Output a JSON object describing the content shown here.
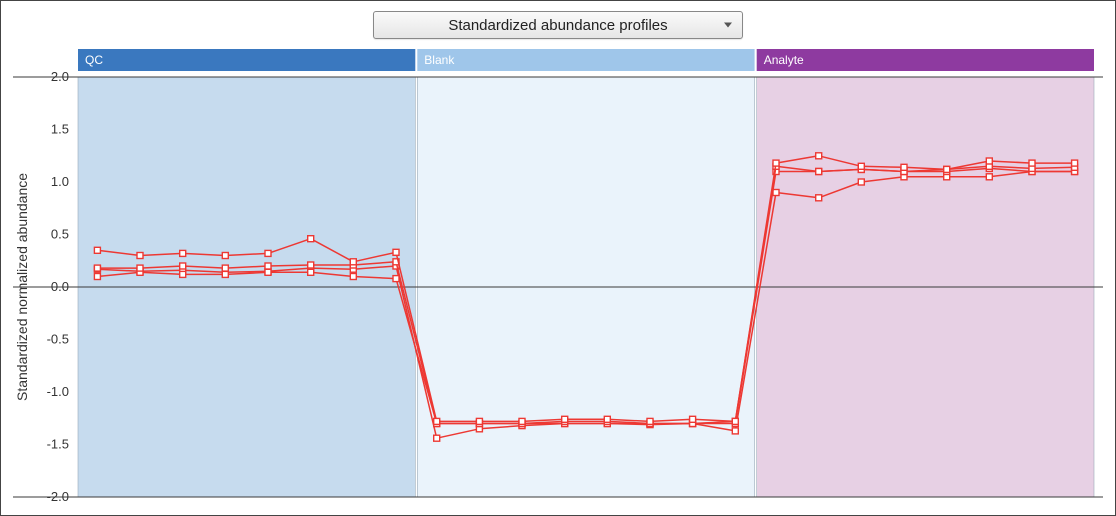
{
  "dropdown": {
    "label": "Standardized abundance profiles",
    "options": [
      "Standardized abundance profiles"
    ]
  },
  "chart": {
    "type": "line",
    "ylabel": "Standardized normalized abundance",
    "ylabel_fontsize": 14,
    "ylim": [
      -2.0,
      2.0
    ],
    "ytick_step": 0.5,
    "yticks": [
      -2.0,
      -1.5,
      -1.0,
      -0.5,
      0.0,
      0.5,
      1.0,
      1.5,
      2.0
    ],
    "grid_y_values": [
      -2.0,
      0.0,
      2.0
    ],
    "grid_color": "#3a3a3a",
    "background_color": "#ffffff",
    "tick_label_fontsize": 13,
    "tick_label_color": "#333333",
    "groups": [
      {
        "label": "QC",
        "header_bg": "#3a78bf",
        "region_bg": "#c6dbee",
        "n": 8
      },
      {
        "label": "Blank",
        "header_bg": "#9fc6ea",
        "region_bg": "#eaf3fb",
        "n": 8
      },
      {
        "label": "Analyte",
        "header_bg": "#8e3aa0",
        "region_bg": "#e7d0e4",
        "n": 8
      }
    ],
    "group_header_height": 22,
    "group_header_fontsize": 12,
    "group_header_color": "#ffffff",
    "group_region_border": "#9aaab8",
    "series_color": "#ed3833",
    "series_line_width": 1.5,
    "marker": {
      "type": "square",
      "size": 6,
      "fill": "#ffffff",
      "stroke": "#ed3833",
      "stroke_width": 1.4
    },
    "series": [
      {
        "values": [
          0.17,
          0.15,
          0.16,
          0.14,
          0.15,
          0.18,
          0.17,
          0.2,
          -1.44,
          -1.35,
          -1.32,
          -1.3,
          -1.3,
          -1.31,
          -1.3,
          -1.37,
          0.9,
          0.85,
          1.0,
          1.05,
          1.05,
          1.05,
          1.1,
          1.1
        ]
      },
      {
        "values": [
          0.1,
          0.14,
          0.12,
          0.12,
          0.14,
          0.14,
          0.1,
          0.08,
          -1.3,
          -1.3,
          -1.3,
          -1.3,
          -1.3,
          -1.3,
          -1.3,
          -1.3,
          1.1,
          1.1,
          1.12,
          1.1,
          1.1,
          1.13,
          1.1,
          1.1
        ]
      },
      {
        "values": [
          0.18,
          0.18,
          0.2,
          0.18,
          0.2,
          0.21,
          0.21,
          0.24,
          -1.3,
          -1.3,
          -1.3,
          -1.28,
          -1.28,
          -1.3,
          -1.3,
          -1.28,
          1.15,
          1.1,
          1.12,
          1.1,
          1.12,
          1.15,
          1.13,
          1.14
        ]
      },
      {
        "values": [
          0.35,
          0.3,
          0.32,
          0.3,
          0.32,
          0.46,
          0.24,
          0.33,
          -1.28,
          -1.28,
          -1.28,
          -1.26,
          -1.26,
          -1.28,
          -1.26,
          -1.28,
          1.18,
          1.25,
          1.15,
          1.14,
          1.12,
          1.2,
          1.18,
          1.18
        ]
      }
    ]
  }
}
